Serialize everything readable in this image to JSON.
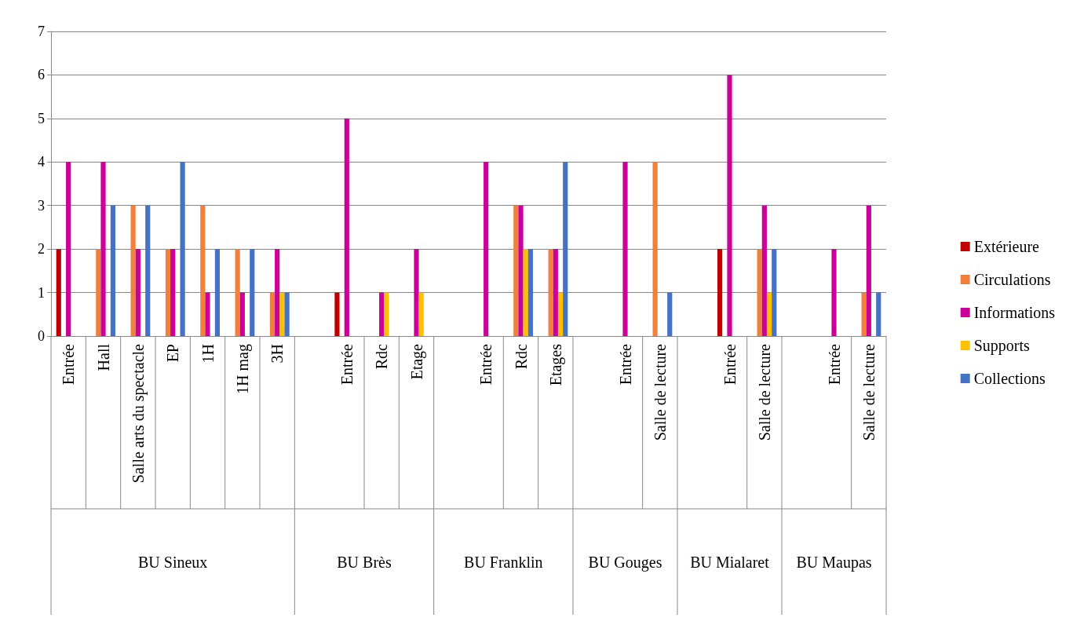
{
  "chart_data": {
    "type": "bar",
    "categories": [
      "Entrée",
      "Hall",
      "Salle arts du spectacle",
      "EP",
      "1H",
      "1H mag",
      "3H",
      null,
      "Entrée",
      "Rdc",
      "Etage",
      null,
      "Entrée",
      "Rdc",
      "Etages",
      null,
      "Entrée",
      "Salle de lecture",
      null,
      "Entrée",
      "Salle de lecture",
      null,
      "Entrée",
      "Salle de lecture"
    ],
    "series": [
      {
        "name": "Extérieure",
        "color": "#c00000",
        "values": [
          2,
          null,
          null,
          null,
          null,
          null,
          null,
          null,
          1,
          null,
          null,
          null,
          null,
          null,
          null,
          null,
          null,
          null,
          null,
          2,
          null,
          null,
          null,
          null
        ]
      },
      {
        "name": "Circulations",
        "color": "#f0803c",
        "values": [
          null,
          2,
          3,
          2,
          3,
          2,
          1,
          null,
          null,
          null,
          null,
          null,
          null,
          3,
          2,
          null,
          null,
          4,
          null,
          null,
          2,
          null,
          null,
          1
        ]
      },
      {
        "name": "Informations",
        "color": "#cc0099",
        "values": [
          4,
          4,
          2,
          2,
          1,
          1,
          2,
          null,
          5,
          1,
          2,
          null,
          4,
          3,
          2,
          null,
          4,
          null,
          null,
          6,
          3,
          null,
          2,
          3
        ]
      },
      {
        "name": "Supports",
        "color": "#ffc000",
        "values": [
          null,
          null,
          null,
          null,
          null,
          null,
          1,
          null,
          null,
          1,
          1,
          null,
          null,
          2,
          1,
          null,
          null,
          null,
          null,
          null,
          1,
          null,
          null,
          null
        ]
      },
      {
        "name": "Collections",
        "color": "#4472c4",
        "values": [
          null,
          3,
          3,
          4,
          2,
          2,
          1,
          null,
          null,
          null,
          null,
          null,
          null,
          2,
          4,
          null,
          null,
          1,
          null,
          null,
          2,
          null,
          null,
          1
        ]
      }
    ],
    "annotations": [
      "BU Sineux",
      "BU Brès",
      "BU Franklin",
      "BU Gouges",
      "BU Mialaret",
      "BU Maupas"
    ],
    "ylim": [
      0,
      7
    ],
    "yticks": [
      0,
      1,
      2,
      3,
      4,
      5,
      6,
      7
    ],
    "grid": true,
    "legend": "right"
  }
}
